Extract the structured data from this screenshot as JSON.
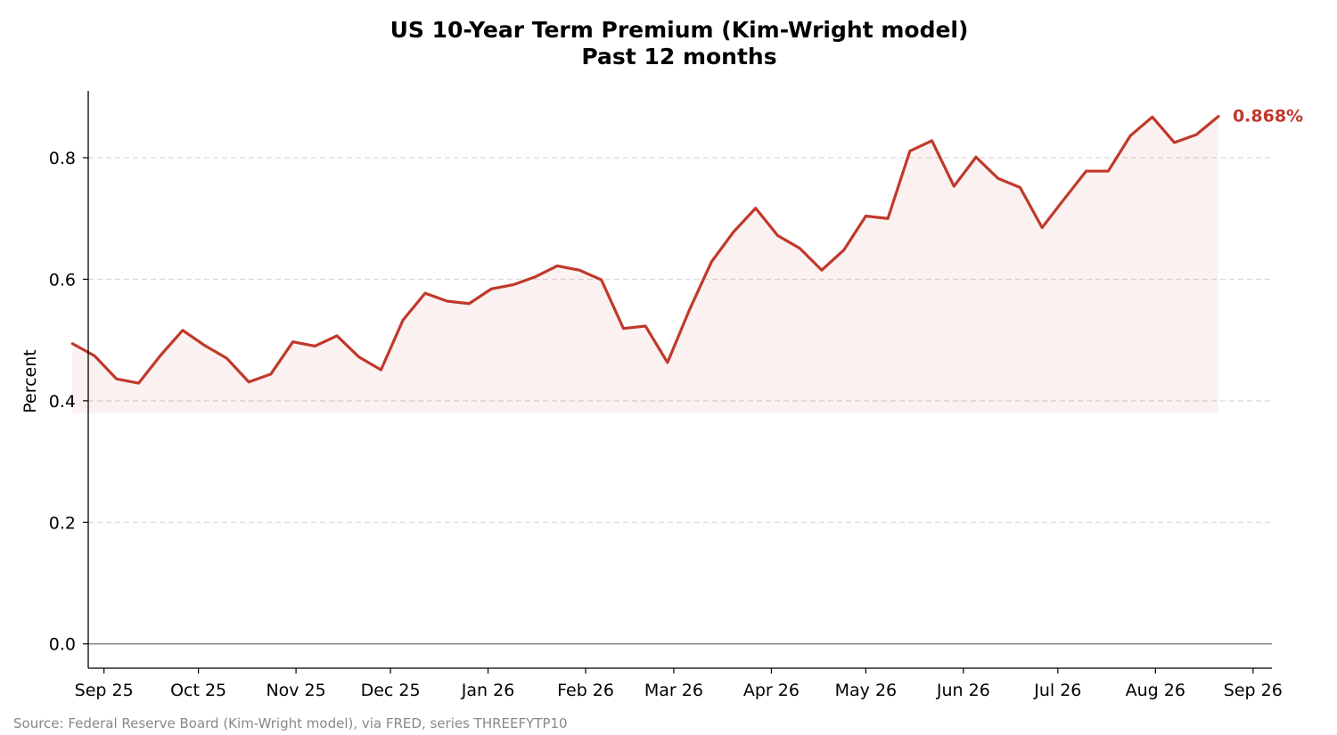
{
  "chart_data": {
    "type": "line",
    "title": "US 10-Year Term Premium (Kim-Wright model)",
    "subtitle": "Past 12 months",
    "ylabel": "Percent",
    "xlabel": "",
    "ylim": [
      -0.04,
      0.91
    ],
    "yticks": [
      0.0,
      0.2,
      0.4,
      0.6,
      0.8
    ],
    "ytick_labels": [
      "0.0",
      "0.2",
      "0.4",
      "0.6",
      "0.8"
    ],
    "xlim": [
      "2025-08-27",
      "2026-09-07"
    ],
    "xticks": [
      "2025-09-01",
      "2025-10-01",
      "2025-11-01",
      "2025-12-01",
      "2026-01-01",
      "2026-02-01",
      "2026-03-01",
      "2026-04-01",
      "2026-05-01",
      "2026-06-01",
      "2026-07-01",
      "2026-08-01",
      "2026-09-01"
    ],
    "xtick_labels": [
      "Sep 25",
      "Oct 25",
      "Nov 25",
      "Dec 25",
      "Jan 26",
      "Feb 26",
      "Mar 26",
      "Apr 26",
      "May 26",
      "Jun 26",
      "Jul 26",
      "Aug 26",
      "Sep 26"
    ],
    "grid": "y-dashed",
    "zero_line": true,
    "fill_baseline": 0.38,
    "line_color": "#c0392b",
    "fill_color": "#c0392b",
    "series": [
      {
        "x": [
          "2025-08-22",
          "2025-08-29",
          "2025-09-05",
          "2025-09-12",
          "2025-09-19",
          "2025-09-26",
          "2025-10-03",
          "2025-10-10",
          "2025-10-17",
          "2025-10-24",
          "2025-10-31",
          "2025-11-07",
          "2025-11-14",
          "2025-11-21",
          "2025-11-28",
          "2025-12-05",
          "2025-12-12",
          "2025-12-19",
          "2025-12-26",
          "2026-01-02",
          "2026-01-09",
          "2026-01-16",
          "2026-01-23",
          "2026-01-30",
          "2026-02-06",
          "2026-02-13",
          "2026-02-20",
          "2026-02-27",
          "2026-03-06",
          "2026-03-13",
          "2026-03-20",
          "2026-03-27",
          "2026-04-03",
          "2026-04-10",
          "2026-04-17",
          "2026-04-24",
          "2026-05-01",
          "2026-05-08",
          "2026-05-15",
          "2026-05-22",
          "2026-05-29",
          "2026-06-05",
          "2026-06-12",
          "2026-06-19",
          "2026-06-26",
          "2026-07-03",
          "2026-07-10",
          "2026-07-17",
          "2026-07-24",
          "2026-07-31",
          "2026-08-07",
          "2026-08-14",
          "2026-08-21"
        ],
        "values": [
          0.494,
          0.474,
          0.436,
          0.429,
          0.475,
          0.516,
          0.491,
          0.47,
          0.431,
          0.444,
          0.497,
          0.49,
          0.507,
          0.472,
          0.451,
          0.533,
          0.577,
          0.564,
          0.56,
          0.584,
          0.591,
          0.604,
          0.622,
          0.615,
          0.599,
          0.519,
          0.523,
          0.463,
          0.55,
          0.629,
          0.678,
          0.717,
          0.672,
          0.651,
          0.615,
          0.648,
          0.704,
          0.7,
          0.811,
          0.828,
          0.753,
          0.801,
          0.766,
          0.751,
          0.685,
          0.732,
          0.778,
          0.778,
          0.836,
          0.867,
          0.825,
          0.838,
          0.868
        ]
      }
    ],
    "end_label": "0.868%",
    "source": "Source: Federal Reserve Board (Kim-Wright model), via FRED, series THREEFYTP10"
  }
}
